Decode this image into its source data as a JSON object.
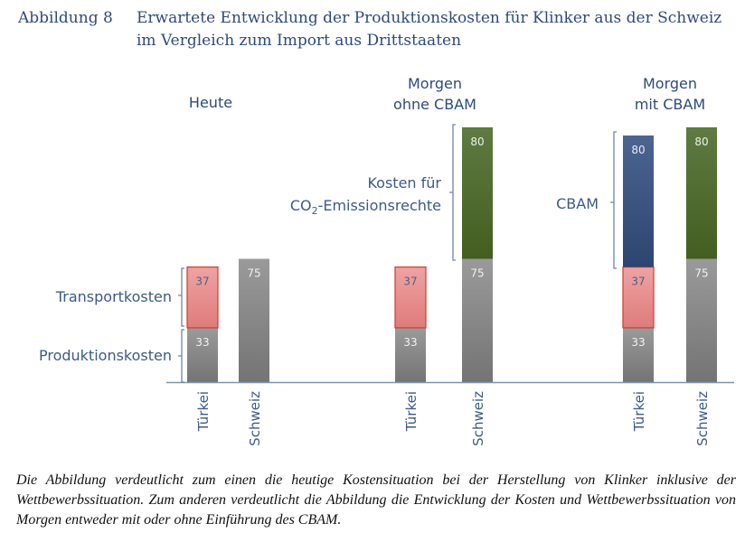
{
  "figure": {
    "number": "Abbildung 8",
    "title": "Erwartete Entwicklung der Produktionskosten für Klinker aus der Schweiz im Vergleich zum Import aus Drittstaaten"
  },
  "caption": "Die Abbildung verdeutlicht zum einen die heutige Kostensituation bei der Herstellung von Klinker inklusive der Wettbewerbssituation. Zum anderen verdeutlicht die Abbildung die Entwicklung der Kosten und Wettbewerbssituation von Morgen entweder mit oder ohne Einführung des CBAM.",
  "chart_data": {
    "type": "bar",
    "stacked": true,
    "title": "",
    "xlabel": "",
    "ylabel": "",
    "ylim": [
      0,
      160
    ],
    "grid": false,
    "groups": [
      {
        "label_lines": [
          "Heute"
        ],
        "bars": [
          {
            "category": "Türkei",
            "segments": [
              {
                "name": "Produktionskosten",
                "value": 33,
                "label": "33"
              },
              {
                "name": "Transportkosten",
                "value": 37,
                "label": "37"
              }
            ]
          },
          {
            "category": "Schweiz",
            "segments": [
              {
                "name": "Produktionskosten",
                "value": 75,
                "label": "75"
              }
            ]
          }
        ]
      },
      {
        "label_lines": [
          "Morgen",
          "ohne CBAM"
        ],
        "bars": [
          {
            "category": "Türkei",
            "segments": [
              {
                "name": "Produktionskosten",
                "value": 33,
                "label": "33"
              },
              {
                "name": "Transportkosten",
                "value": 37,
                "label": "37"
              }
            ]
          },
          {
            "category": "Schweiz",
            "segments": [
              {
                "name": "Produktionskosten",
                "value": 75,
                "label": "75"
              },
              {
                "name": "CO2-Emissionsrechte",
                "value": 80,
                "label": "80"
              }
            ]
          }
        ]
      },
      {
        "label_lines": [
          "Morgen",
          "mit CBAM"
        ],
        "bars": [
          {
            "category": "Türkei",
            "segments": [
              {
                "name": "Produktionskosten",
                "value": 33,
                "label": "33"
              },
              {
                "name": "Transportkosten",
                "value": 37,
                "label": "37"
              },
              {
                "name": "CBAM",
                "value": 80,
                "label": "80"
              }
            ]
          },
          {
            "category": "Schweiz",
            "segments": [
              {
                "name": "Produktionskosten",
                "value": 75,
                "label": "75"
              },
              {
                "name": "CO2-Emissionsrechte",
                "value": 80,
                "label": "80"
              }
            ]
          }
        ]
      }
    ],
    "annotations": {
      "produktion": "Produktionskosten",
      "transport": "Transportkosten",
      "co2_line1": "Kosten für",
      "co2_line2_pre": "CO",
      "co2_line2_sub": "2",
      "co2_line2_post": "-Emissionsrechte",
      "cbam": "CBAM"
    },
    "colors": {
      "Produktionskosten": "#8a8a8a",
      "Transportkosten": "#e8898a",
      "Transportkosten_border": "#d23b2e",
      "CO2-Emissionsrechte": "#4d6a2e",
      "CBAM": "#36507f",
      "axis": "#7f93b5",
      "brace": "#6d86ad"
    }
  }
}
